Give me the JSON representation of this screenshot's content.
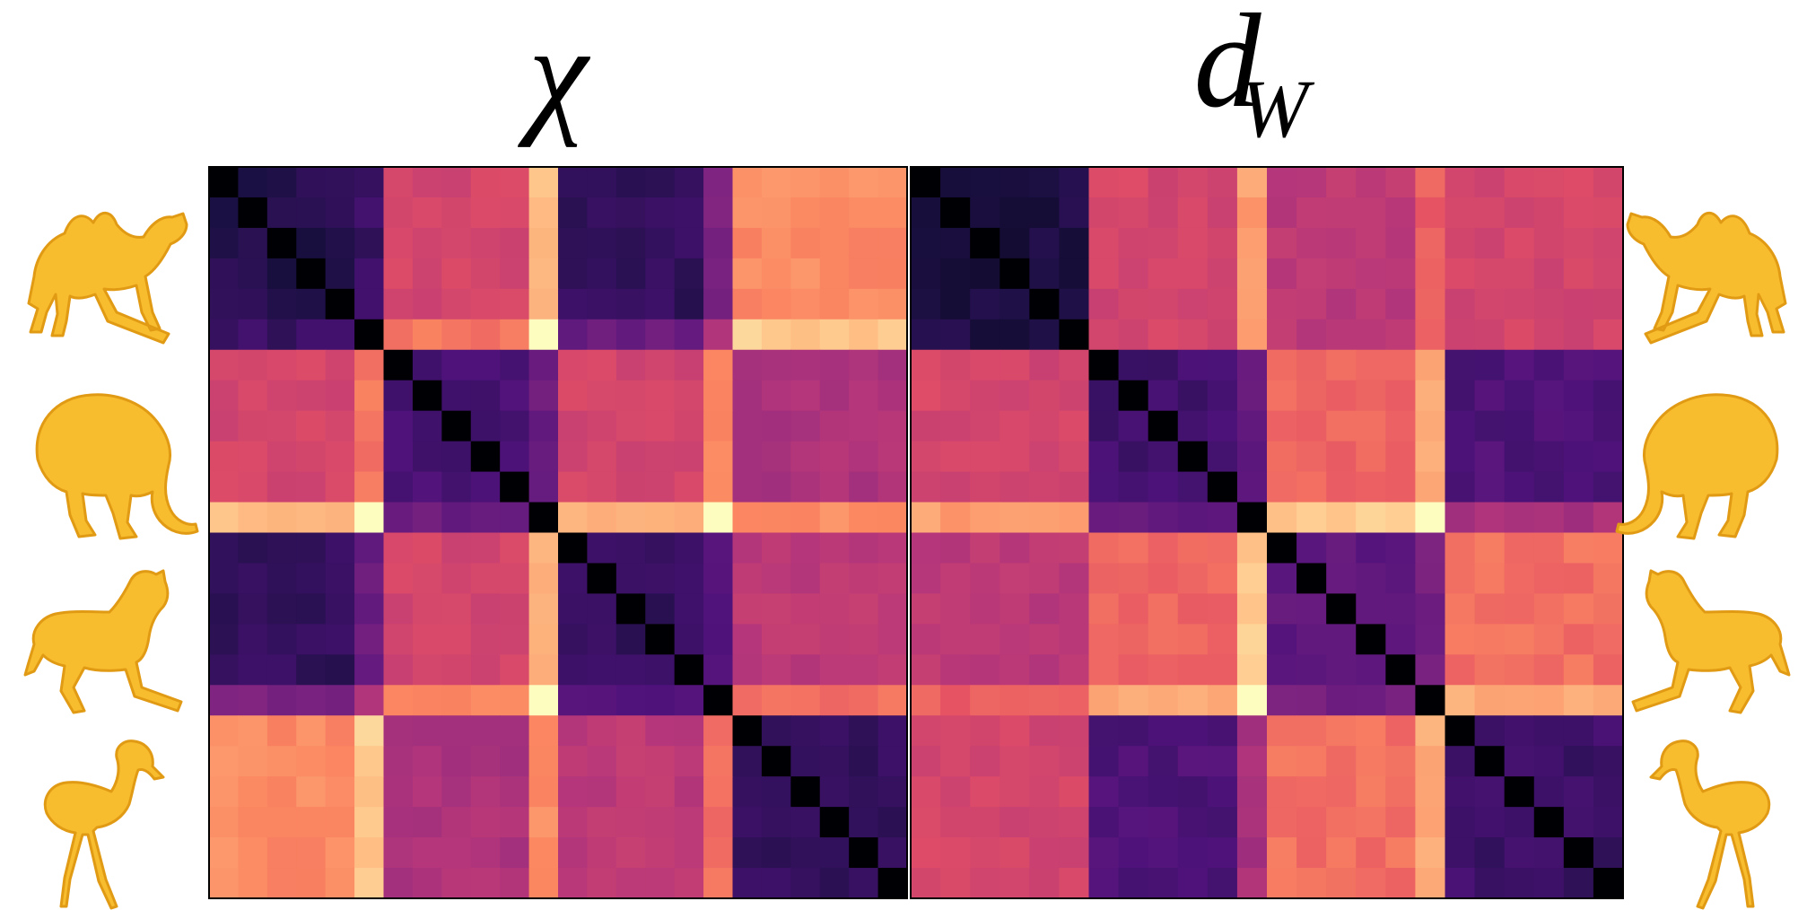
{
  "chart_data": [
    {
      "type": "heatmap",
      "title": "χ",
      "size": 24,
      "block_size": 6,
      "colormap": "magma",
      "value_range": [
        0,
        1
      ],
      "block_values": [
        [
          0.14,
          0.58,
          0.18,
          0.76
        ],
        [
          0.58,
          0.22,
          0.58,
          0.48
        ],
        [
          0.18,
          0.58,
          0.18,
          0.52
        ],
        [
          0.76,
          0.48,
          0.52,
          0.18
        ]
      ],
      "spikes": [
        {
          "index": 5,
          "strength": 0.14
        },
        {
          "index": 11,
          "strength": 0.28
        },
        {
          "index": 17,
          "strength": 0.18
        }
      ]
    },
    {
      "type": "heatmap",
      "title": "d_W",
      "title_main": "d",
      "title_sub": "W",
      "size": 24,
      "block_size": 6,
      "colormap": "magma",
      "value_range": [
        0,
        1
      ],
      "block_values": [
        [
          0.12,
          0.58,
          0.52,
          0.58
        ],
        [
          0.58,
          0.22,
          0.68,
          0.25
        ],
        [
          0.52,
          0.68,
          0.28,
          0.7
        ],
        [
          0.58,
          0.25,
          0.7,
          0.2
        ]
      ],
      "spikes": [
        {
          "index": 11,
          "strength": 0.22
        },
        {
          "index": 17,
          "strength": 0.14
        }
      ]
    }
  ],
  "shapes": [
    "camel",
    "elephant",
    "horse",
    "flamingo"
  ],
  "shape_color": "#f7bd2e",
  "shape_shade": "#e19a14"
}
